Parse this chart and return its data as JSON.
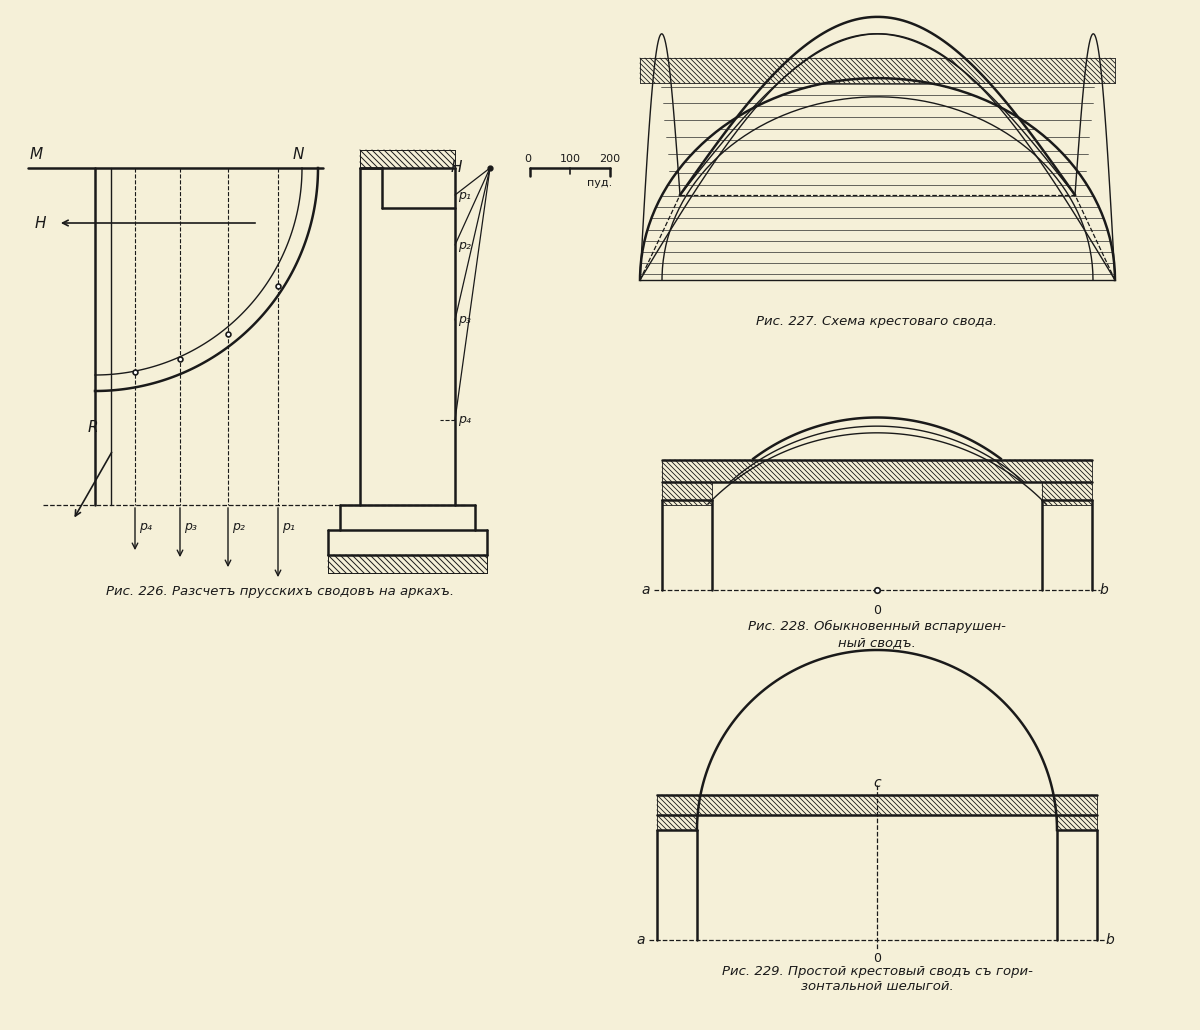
{
  "bg_color": "#f5f0d8",
  "line_color": "#1a1a1a",
  "fig_width": 12.0,
  "fig_height": 10.3,
  "caption_226": "Рис. 226. Разсчетъ прусскихъ сводовъ на аркахъ.",
  "caption_227": "Рис. 227. Схема крестоваго свода.",
  "caption_228_line1": "Рис. 228. Обыкновенный вспарушен-",
  "caption_228_line2": "ный сводъ.",
  "caption_229_line1": "Рис. 229. Простой крестовый сводъ съ гори-",
  "caption_229_line2": "зонтальной шелыгой.",
  "font_size_caption": 9.5,
  "font_size_label": 10.5
}
